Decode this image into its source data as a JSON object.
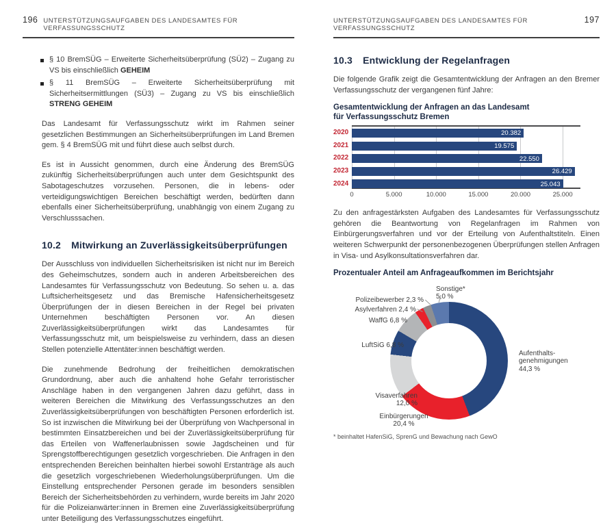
{
  "pages": {
    "left": {
      "page_number": "196",
      "header": "UNTERSTÜTZUNGSAUFGABEN DES LANDESAMTES FÜR VERFASSUNGSSCHUTZ",
      "bullets": [
        {
          "pre": "§ 10 BremSÜG – Erweiterte Sicherheitsüberprüfung (SÜ2) – Zugang zu VS bis einschließlich ",
          "bold": "GEHEIM"
        },
        {
          "pre": "§ 11 BremSÜG – Erweiterte Sicherheitsüberprüfung mit Sicherheitsermittlungen (SÜ3) – Zugang zu VS bis einschließlich ",
          "bold": "STRENG GEHEIM"
        }
      ],
      "para1": "Das Landesamt für Verfassungsschutz wirkt im Rahmen seiner gesetzlichen Bestimmungen an Sicherheitsüberprüfungen im Land Bremen gem. § 4 BremSÜG mit und führt diese auch selbst durch.",
      "para2": "Es ist in Aussicht genommen, durch eine Änderung des BremSÜG zukünftig Sicherheitsüberprüfungen auch unter dem Gesichtspunkt des Sabotageschutzes vorzusehen. Personen, die in lebens- oder verteidigungswichtigen Bereichen beschäftigt werden, bedürften dann ebenfalls einer Sicherheitsüberprüfung, unabhängig von einem Zugang zu Verschlusssachen.",
      "section": {
        "number": "10.2",
        "title": "Mitwirkung an Zuverlässigkeitsüberprüfungen"
      },
      "para3": "Der Ausschluss von individuellen Sicherheitsrisiken ist nicht nur im Bereich des Geheimschutzes, sondern auch in anderen Arbeitsbereichen des Landesamtes für Verfassungsschutz von Bedeutung. So sehen u. a. das Luftsicherheitsgesetz und das Bremische Hafensicherheitsgesetz Überprüfungen der in diesen Bereichen in der Regel bei privaten Unternehmen beschäftigten Personen vor. An diesen Zuverlässigkeitsüberprüfungen wirkt das Landesamtes für Verfassungsschutz mit, um beispielsweise zu verhindern, dass an diesen Stellen potenzielle Attentäter:innen beschäftigt werden.",
      "para4": "Die zunehmende Bedrohung der freiheitlichen demokratischen Grundordnung, aber auch die anhaltend hohe Gefahr terroristischer Anschläge haben in den vergangenen Jahren dazu geführt, dass in weiteren Bereichen die Mitwirkung des Verfassungsschutzes an den Zuverlässigkeitsüberprüfungen von beschäftigten Personen erforderlich ist. So ist inzwischen die Mitwirkung bei der Überprüfung von Wachpersonal in bestimmten Einsatzbereichen und bei der Zuverlässigkeitsüberprüfung für das Erteilen von Waffenerlaubnissen sowie Jagdscheinen und für Sprengstoffberechtigungen gesetzlich vorgeschrieben. Die Anfragen in den entsprechenden Bereichen beinhalten hierbei sowohl Erstanträge als auch die gesetzlich vorgeschriebenen Wiederholungsüberprüfungen. Um die Einstellung entsprechender Personen gerade im besonders sensiblen Bereich der Sicherheitsbehörden zu verhindern, wurde bereits im Jahr 2020 für die Polizeianwärter:innen in Bremen eine Zuverlässigkeitsüberprüfung unter Beteiligung des Verfassungsschutzes eingeführt."
    },
    "right": {
      "page_number": "197",
      "header": "UNTERSTÜTZUNGSAUFGABEN DES LANDESAMTES FÜR VERFASSUNGSSCHUTZ",
      "section": {
        "number": "10.3",
        "title": "Entwicklung der Regelanfragen"
      },
      "intro": "Die folgende Grafik zeigt die Gesamtentwicklung der Anfragen an den Bremer Verfassungsschutz der vergangenen fünf Jahre:",
      "para_after_chart": "Zu den anfragestärksten Aufgaben des Landesamtes für Verfassungsschutz gehören die Beantwortung von Regelanfragen im Rahmen von Einbürgerungsverfahren und vor der Erteilung von Aufenthaltstiteln. Einen weiteren Schwerpunkt der personenbezogenen Überprüfungen stellen Anfragen in Visa- und Asylkonsultationsverfahren dar."
    }
  },
  "chart_data": [
    {
      "type": "bar",
      "orientation": "horizontal",
      "title": "Gesamtentwicklung der Anfragen an das Landesamt für Verfassungsschutz Bremen",
      "title_lines": [
        "Gesamtentwicklung der Anfragen an das Landesamt",
        "für Verfassungsschutz Bremen"
      ],
      "categories": [
        "2020",
        "2021",
        "2022",
        "2023",
        "2024"
      ],
      "values": [
        20382,
        19575,
        22550,
        26429,
        25043
      ],
      "value_labels": [
        "20.382",
        "19.575",
        "22.550",
        "26.429",
        "25.043"
      ],
      "x_ticks": [
        "0",
        "5.000",
        "10.000",
        "15.000",
        "20.000",
        "25.000"
      ],
      "xlim": [
        0,
        27100
      ],
      "tick_step": 5000,
      "grid": true,
      "bar_color": "#27477e",
      "category_color": "#c22532",
      "value_label_color": "#ffffff"
    },
    {
      "type": "pie",
      "subtype": "donut",
      "title": "Prozentualer Anteil am Anfrageaufkommen im Berichtsjahr",
      "direction": "clockwise",
      "start_angle_deg": 0,
      "segments": [
        {
          "label": "Aufenthaltsgenehmigungen",
          "value": 44.3,
          "lines": [
            "Aufenthalts-",
            "genehmigungen",
            "44,3 %"
          ],
          "color": "#27477e"
        },
        {
          "label": "Einbürgerungen",
          "value": 20.4,
          "lines": [
            "Einbürgerungen",
            "20,4 %"
          ],
          "color": "#e8212b"
        },
        {
          "label": "Visaverfahren",
          "value": 12.0,
          "lines": [
            "Visaverfahren",
            "12,0 %"
          ],
          "color": "#d6d7d8"
        },
        {
          "label": "LuftSiG",
          "value": 6.8,
          "lines": [
            "LuftSiG 6,8 %"
          ],
          "color": "#27477e"
        },
        {
          "label": "WaffG",
          "value": 6.8,
          "lines": [
            "WaffG 6,8 %"
          ],
          "color": "#b3b5b7"
        },
        {
          "label": "Asylverfahren",
          "value": 2.4,
          "lines": [
            "Asylverfahren 2,4 %"
          ],
          "color": "#e8212b"
        },
        {
          "label": "Polizeibewerber",
          "value": 2.3,
          "lines": [
            "Polizeibewerber 2,3 %"
          ],
          "color": "#8d8f92"
        },
        {
          "label": "Sonstige*",
          "value": 5.0,
          "lines": [
            "Sonstige*",
            "5,0 %"
          ],
          "color": "#5b79ae"
        }
      ],
      "footnote": "* beinhaltet HafenSiG, SprenG und Bewachung nach GewO"
    }
  ]
}
